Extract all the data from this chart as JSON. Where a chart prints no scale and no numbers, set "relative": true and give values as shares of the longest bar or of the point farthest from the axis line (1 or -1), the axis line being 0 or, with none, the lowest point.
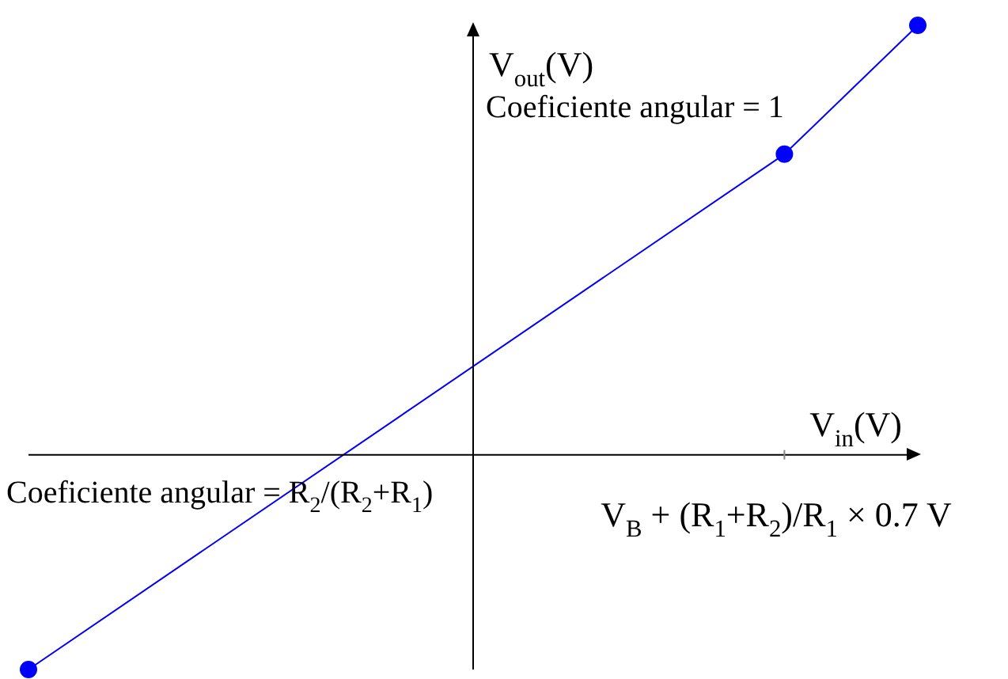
{
  "chart_data": {
    "type": "line",
    "relative": true,
    "tick_labels": "x",
    "categories": [
      null,
      null,
      null,
      null,
      null,
      null,
      null,
      null,
      null,
      null,
      null,
      null,
      null,
      null,
      null,
      null,
      null,
      "V$_{B}$ + (R$_{1}$+R$_{2}$)/R$_{1}$ × 0.7 V",
      null,
      null,
      null
    ],
    "values": [
      -0.5,
      null,
      null,
      null,
      null,
      null,
      null,
      null,
      null,
      null,
      null,
      null,
      null,
      null,
      null,
      null,
      null,
      0.7,
      null,
      null,
      1
    ],
    "color": "#0000ff",
    "marker": "circle",
    "xlabel": "V$_{in}$(V)",
    "ylabel": "V$_{out}$(V)",
    "annotations": [
      "Coeficiente angular = 1",
      "Coeficiente angular = R$_{2}$/(R$_{2}$+R$_{1}$)"
    ]
  }
}
